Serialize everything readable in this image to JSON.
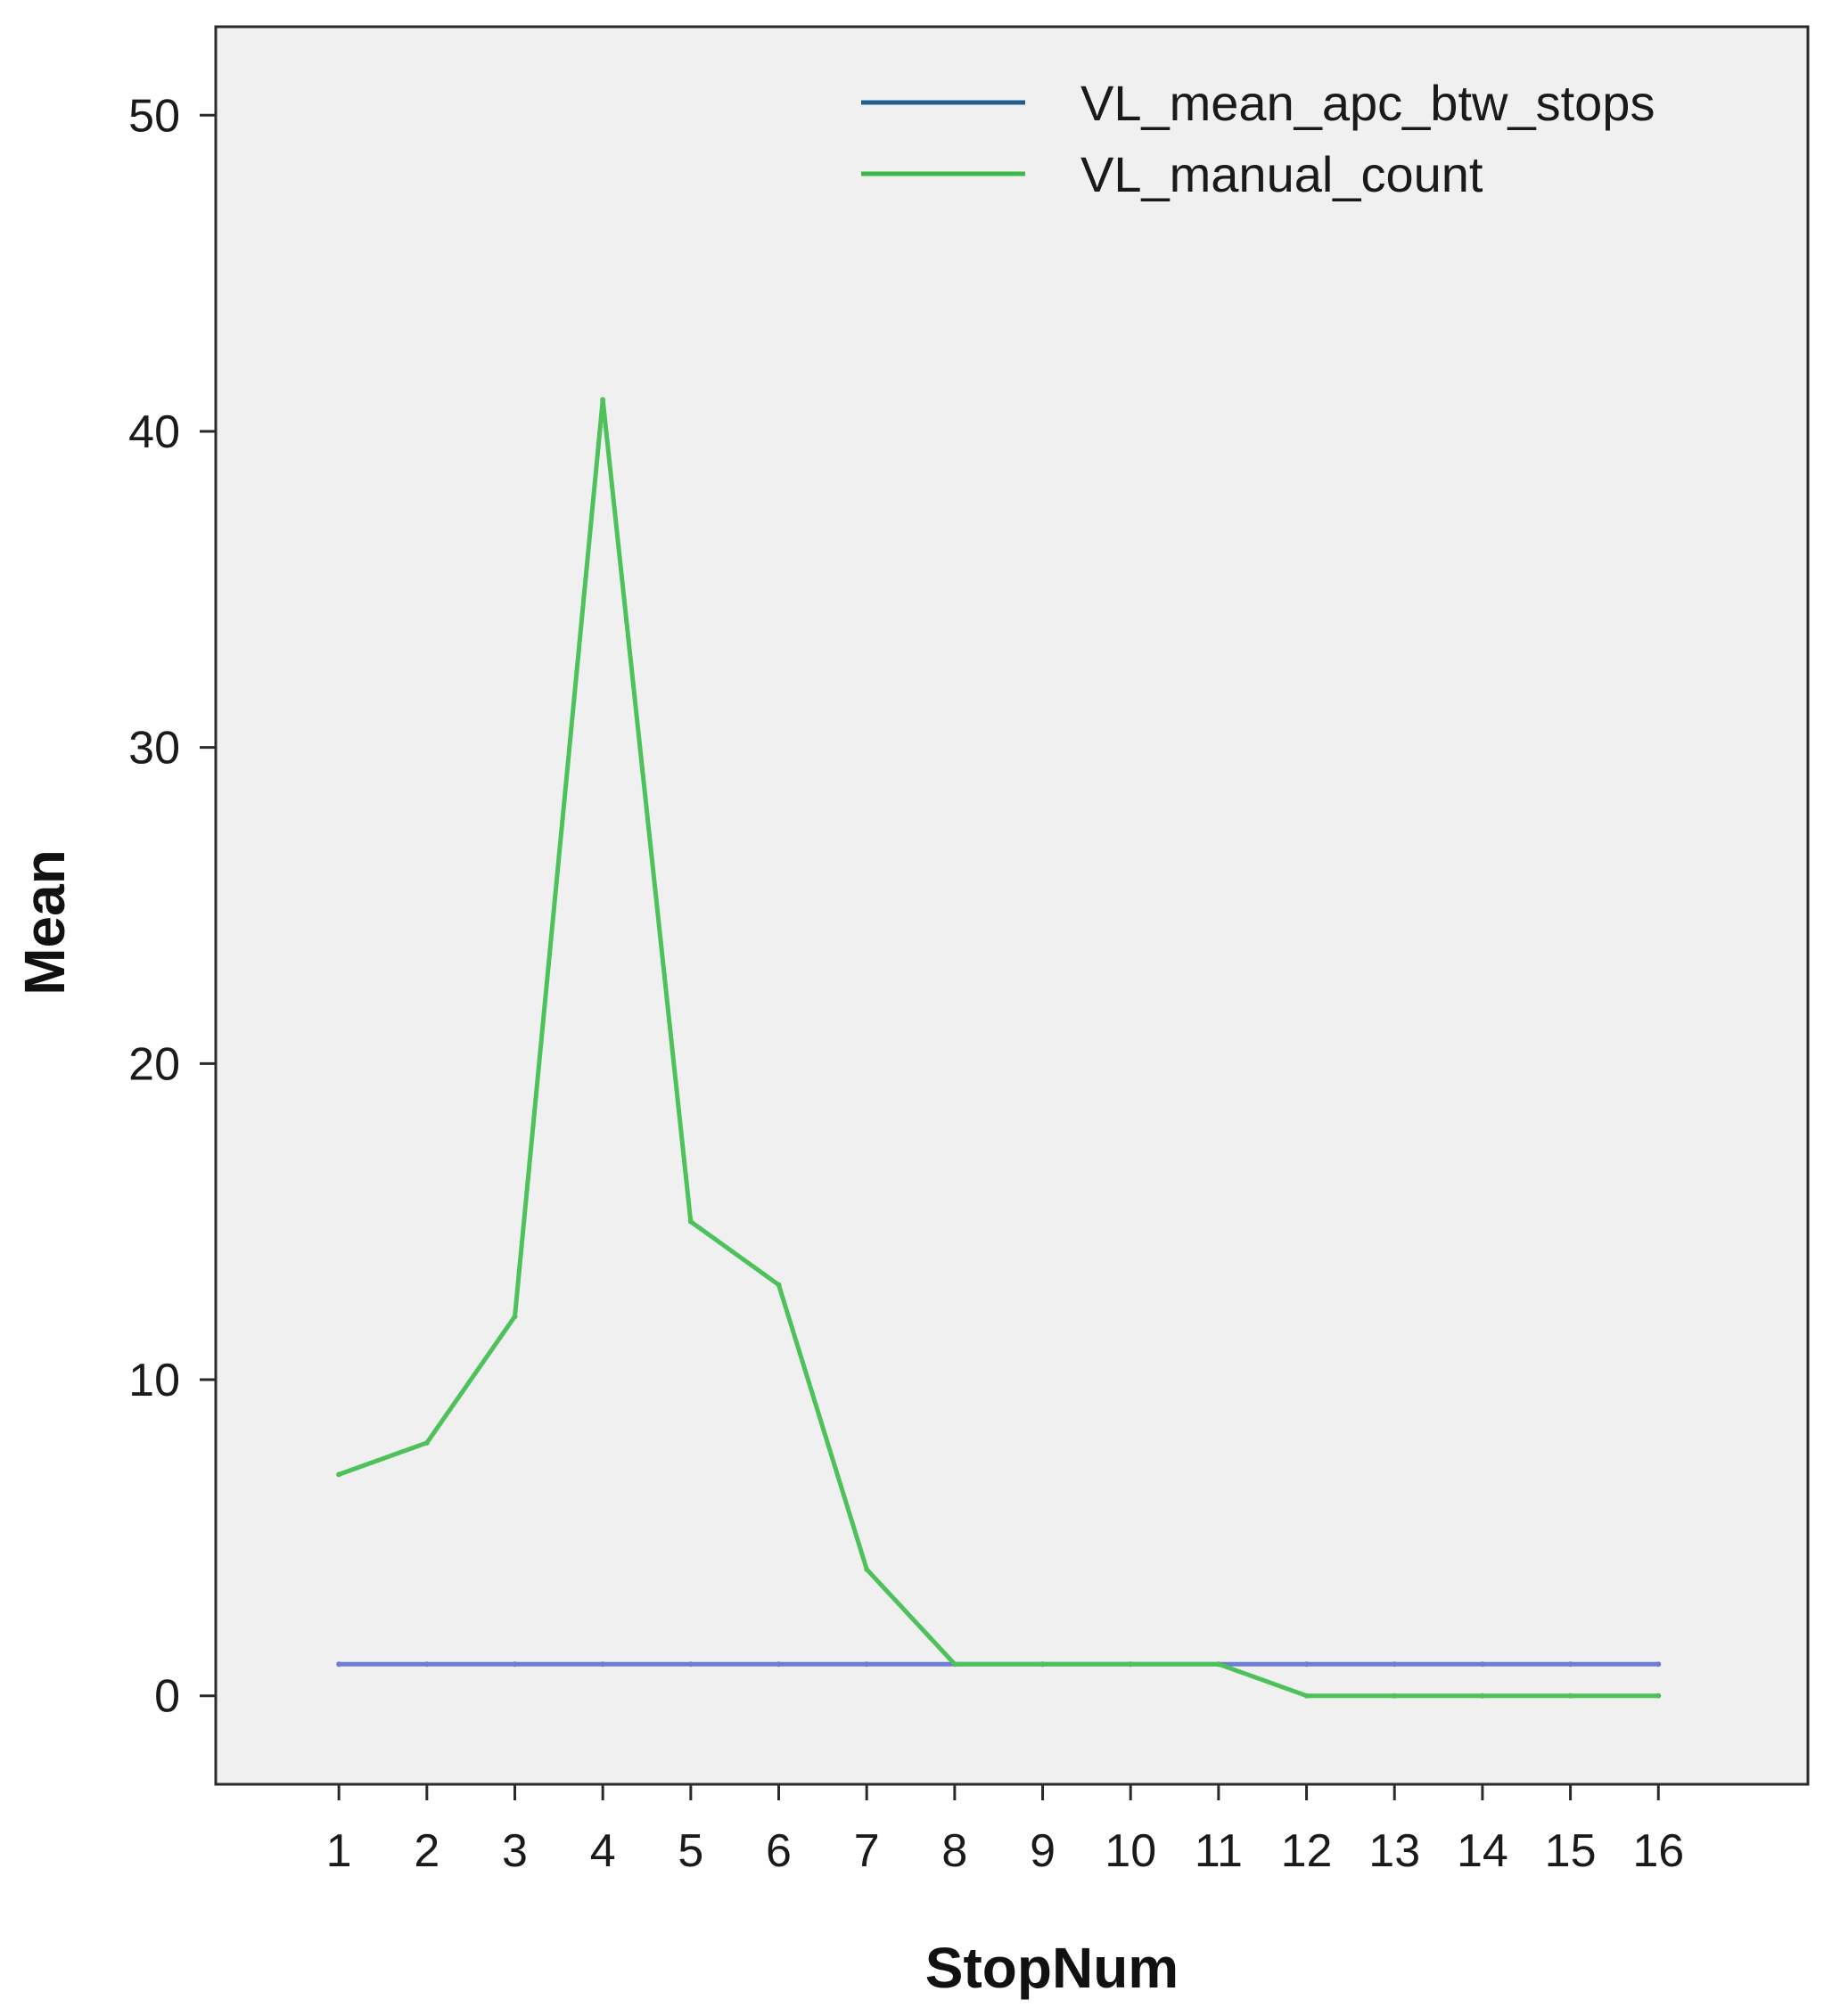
{
  "chart_data": {
    "type": "line",
    "title": "",
    "xlabel": "StopNum",
    "ylabel": "Mean",
    "x": [
      1,
      2,
      3,
      4,
      5,
      6,
      7,
      8,
      9,
      10,
      11,
      12,
      13,
      14,
      15,
      16
    ],
    "x_tick_labels": [
      "1",
      "2",
      "3",
      "4",
      "5",
      "6",
      "7",
      "8",
      "9",
      "10",
      "11",
      "12",
      "13",
      "14",
      "15",
      "16"
    ],
    "y_ticks": [
      0,
      10,
      20,
      30,
      40,
      50
    ],
    "y_tick_labels": [
      "0",
      "10",
      "20",
      "30",
      "40",
      "50"
    ],
    "ylim": [
      -2.8,
      52.8
    ],
    "xlim": [
      -0.4,
      17.7
    ],
    "grid": false,
    "legend_placement": "top-right",
    "plot_background": "#f0f0f0",
    "series": [
      {
        "name": "VL_mean_apc_btw_stops",
        "legend_color": "#1f5f8f",
        "color": "#6b7fd1",
        "values": [
          1,
          1,
          1,
          1,
          1,
          1,
          1,
          1,
          1,
          1,
          1,
          1,
          1,
          1,
          1,
          1
        ]
      },
      {
        "name": "VL_manual_count",
        "legend_color": "#3cb84b",
        "color": "#4dc25a",
        "values": [
          7,
          8,
          12,
          41,
          15,
          13,
          4,
          1,
          1,
          1,
          1,
          0,
          0,
          0,
          0,
          0
        ]
      }
    ]
  }
}
